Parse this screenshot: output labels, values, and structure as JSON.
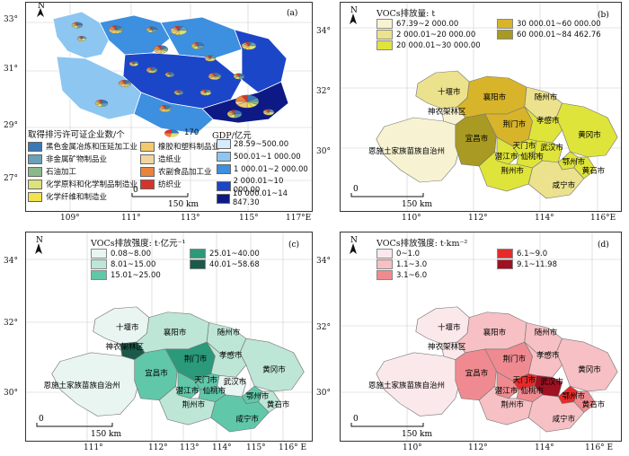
{
  "panels": {
    "a": {
      "letter": "(a)",
      "lat_ticks": [
        "33°",
        "31°",
        "29°",
        "27°"
      ],
      "lon_ticks": [
        "109°",
        "111°",
        "113°",
        "115°",
        "117°E"
      ],
      "industry_legend_title": "取得排污许可证企业数/个",
      "industry_items": [
        {
          "label": "黑色金属冶炼和压延加工业",
          "color": "#3a78b8"
        },
        {
          "label": "非金属矿物制品业",
          "color": "#6aa0b8"
        },
        {
          "label": "石油加工",
          "color": "#8ab88a"
        },
        {
          "label": "化学原料和化学制品制造业",
          "color": "#dde27a"
        },
        {
          "label": "化学纤维和制造业",
          "color": "#f2e34a"
        },
        {
          "label": "橡胶和塑料制品业",
          "color": "#f3c96a"
        },
        {
          "label": "造纸业",
          "color": "#f0d6a0"
        },
        {
          "label": "农副食品加工业",
          "color": "#e8843c"
        },
        {
          "label": "纺织业",
          "color": "#d8332a"
        }
      ],
      "pie_size_label": "170",
      "gdp_title": "GDP/亿元",
      "gdp_classes": [
        {
          "label": "28.59~500.00",
          "color": "#d6ebfb"
        },
        {
          "label": "500.01~1 000.00",
          "color": "#8dc6f0"
        },
        {
          "label": "1 000.01~2 000.00",
          "color": "#3d8fe0"
        },
        {
          "label": "2 000.01~10 000.00",
          "color": "#1c46c8"
        },
        {
          "label": "10 000.01~14 847.30",
          "color": "#0d1a86"
        }
      ],
      "scale": "150 km"
    },
    "b": {
      "letter": "(b)",
      "legend_title": "VOCs排放量: t",
      "classes": [
        {
          "label": "67.39~2 000.00",
          "color": "#f7f3d2"
        },
        {
          "label": "2 000.01~20 000.00",
          "color": "#ece28e"
        },
        {
          "label": "20 000.01~30 000.00",
          "color": "#dfe43a"
        },
        {
          "label": "30 000.01~60 000.00",
          "color": "#d8b42a"
        },
        {
          "label": "60 000.01~84 462.76",
          "color": "#a89a22"
        }
      ],
      "lat_ticks": [
        "34°",
        "32°",
        "30°"
      ],
      "lon_ticks": [
        "110°",
        "112°",
        "114°",
        "116°E"
      ],
      "scale": "150 km"
    },
    "c": {
      "letter": "(c)",
      "legend_title": "VOCs排放强度: t·亿元⁻¹",
      "classes": [
        {
          "label": "0.08~8.00",
          "color": "#e9f5f1"
        },
        {
          "label": "8.01~15.00",
          "color": "#bde6d6"
        },
        {
          "label": "15.01~25.00",
          "color": "#60c7a8"
        },
        {
          "label": "25.01~40.00",
          "color": "#2a9a7a"
        },
        {
          "label": "40.01~58.68",
          "color": "#1a5a4a"
        }
      ],
      "lat_ticks": [
        "34°",
        "32°",
        "30°"
      ],
      "lon_ticks": [
        "111°",
        "112°",
        "113°",
        "114°",
        "115°",
        "116° E"
      ],
      "scale": "150 km"
    },
    "d": {
      "letter": "(d)",
      "legend_title": "VOCs排放强度: t·km⁻²",
      "classes": [
        {
          "label": "0~1.0",
          "color": "#fbe8ea"
        },
        {
          "label": "1.1~3.0",
          "color": "#f6c0c4"
        },
        {
          "label": "3.1~6.0",
          "color": "#ef8b90"
        },
        {
          "label": "6.1~9.0",
          "color": "#e62a2a"
        },
        {
          "label": "9.1~11.98",
          "color": "#a01020"
        }
      ],
      "lat_ticks": [
        "34°",
        "32°",
        "30°"
      ],
      "lon_ticks": [
        "110°",
        "112°",
        "114°",
        "116° E"
      ],
      "scale": "150 km"
    }
  },
  "cities": {
    "shiyan": "十堰市",
    "shennongjia": "神农架林区",
    "xiangyang": "襄阳市",
    "suizhou": "随州市",
    "enshi": "恩施土家族苗族自治州",
    "yichang": "宜昌市",
    "jingmen": "荆门市",
    "xiaogan": "孝感市",
    "tianmen": "天门市",
    "qianjiang": "潜江市",
    "xiantao": "仙桃市",
    "wuhan": "武汉市",
    "huanggang": "黄冈市",
    "ezhou": "鄂州市",
    "jingzhou": "荆州市",
    "huangshi": "黄石市",
    "xianning": "咸宁市"
  },
  "classification": {
    "b": {
      "shiyan": 1,
      "shennongjia": 0,
      "xiangyang": 3,
      "suizhou": 1,
      "enshi": 0,
      "yichang": 4,
      "jingmen": 3,
      "xiaogan": 2,
      "tianmen": 2,
      "qianjiang": 2,
      "xiantao": 2,
      "wuhan": 2,
      "huanggang": 2,
      "ezhou": 2,
      "jingzhou": 2,
      "huangshi": 2,
      "xianning": 1
    },
    "c": {
      "shiyan": 0,
      "shennongjia": 4,
      "xiangyang": 1,
      "suizhou": 1,
      "enshi": 0,
      "yichang": 2,
      "jingmen": 3,
      "xiaogan": 1,
      "tianmen": 2,
      "qianjiang": 2,
      "xiantao": 2,
      "wuhan": 0,
      "huanggang": 1,
      "ezhou": 2,
      "jingzhou": 1,
      "huangshi": 1,
      "xianning": 2
    },
    "d": {
      "shiyan": 0,
      "shennongjia": 0,
      "xiangyang": 1,
      "suizhou": 1,
      "enshi": 0,
      "yichang": 2,
      "jingmen": 2,
      "xiaogan": 1,
      "tianmen": 3,
      "qianjiang": 2,
      "xiantao": 2,
      "wuhan": 4,
      "huanggang": 1,
      "ezhou": 3,
      "jingzhou": 1,
      "huangshi": 2,
      "xianning": 1
    }
  }
}
